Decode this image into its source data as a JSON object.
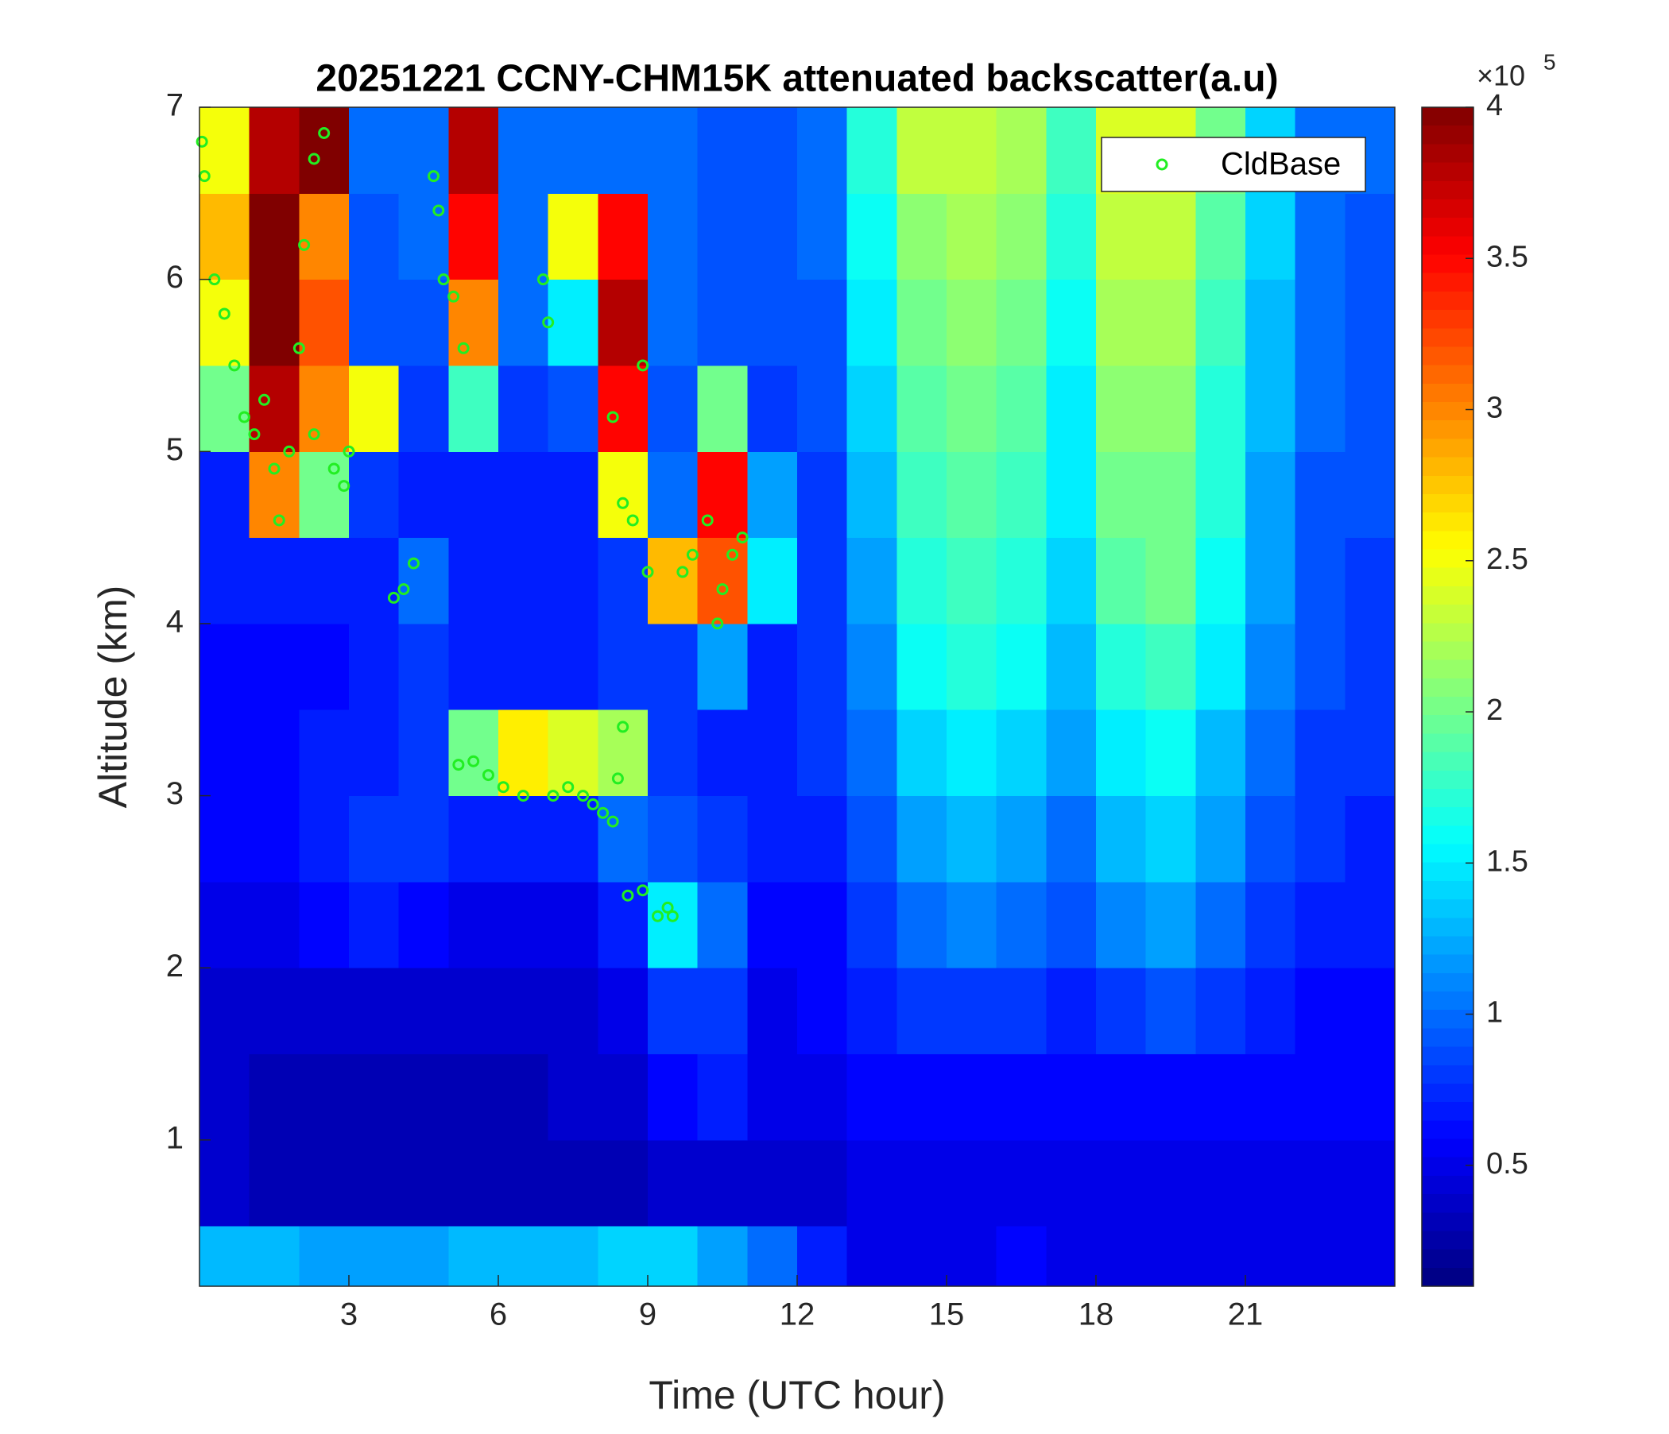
{
  "chart_data": {
    "type": "heatmap",
    "title": "20251221 CCNY-CHM15K attenuated backscatter(a.u)",
    "xlabel": "Time (UTC hour)",
    "ylabel": "Altitude (km)",
    "xlim": [
      0,
      24
    ],
    "xticks": [
      3,
      6,
      9,
      12,
      15,
      18,
      21
    ],
    "ylim": [
      0.15,
      7
    ],
    "yticks": [
      1,
      2,
      3,
      4,
      5,
      6,
      7
    ],
    "colormap": "jet",
    "clim": [
      0.1,
      4
    ],
    "cticks": [
      0.5,
      1,
      1.5,
      2,
      2.5,
      3,
      3.5,
      4
    ],
    "colorbar_multiplier": "×10",
    "colorbar_exponent": "5",
    "xbins": [
      0,
      1,
      2,
      3,
      4,
      5,
      6,
      7,
      8,
      9,
      10,
      11,
      12,
      13,
      14,
      15,
      16,
      17,
      18,
      19,
      20,
      21,
      22,
      23,
      24
    ],
    "ybins": [
      0.15,
      0.5,
      1,
      1.5,
      2,
      2.5,
      3,
      3.5,
      4,
      4.5,
      5,
      5.5,
      6,
      6.5,
      7
    ],
    "z": [
      [
        1.3,
        1.3,
        1.2,
        1.2,
        1.2,
        1.3,
        1.3,
        1.3,
        1.4,
        1.4,
        1.2,
        1.0,
        0.7,
        0.5,
        0.5,
        0.5,
        0.6,
        0.5,
        0.5,
        0.5,
        0.5,
        0.5,
        0.5,
        0.5
      ],
      [
        0.4,
        0.3,
        0.3,
        0.3,
        0.3,
        0.3,
        0.3,
        0.3,
        0.3,
        0.4,
        0.4,
        0.4,
        0.4,
        0.5,
        0.5,
        0.5,
        0.5,
        0.5,
        0.5,
        0.5,
        0.5,
        0.5,
        0.5,
        0.5
      ],
      [
        0.4,
        0.3,
        0.3,
        0.3,
        0.3,
        0.3,
        0.3,
        0.4,
        0.4,
        0.6,
        0.7,
        0.5,
        0.5,
        0.6,
        0.6,
        0.6,
        0.6,
        0.6,
        0.6,
        0.6,
        0.6,
        0.6,
        0.6,
        0.6
      ],
      [
        0.4,
        0.4,
        0.4,
        0.4,
        0.4,
        0.4,
        0.4,
        0.4,
        0.5,
        0.8,
        0.8,
        0.5,
        0.6,
        0.7,
        0.8,
        0.8,
        0.8,
        0.7,
        0.8,
        0.9,
        0.8,
        0.7,
        0.6,
        0.6
      ],
      [
        0.5,
        0.5,
        0.6,
        0.7,
        0.6,
        0.5,
        0.5,
        0.5,
        0.7,
        1.5,
        1.0,
        0.6,
        0.6,
        0.8,
        1.0,
        1.1,
        1.0,
        0.9,
        1.1,
        1.2,
        1.0,
        0.8,
        0.7,
        0.7
      ],
      [
        0.6,
        0.6,
        0.7,
        0.8,
        0.8,
        0.7,
        0.7,
        0.7,
        1.0,
        0.9,
        0.8,
        0.7,
        0.7,
        0.9,
        1.2,
        1.3,
        1.2,
        1.0,
        1.3,
        1.4,
        1.2,
        0.9,
        0.8,
        0.7
      ],
      [
        0.6,
        0.6,
        0.7,
        0.7,
        0.8,
        2.0,
        2.6,
        2.4,
        2.2,
        0.8,
        0.7,
        0.7,
        0.8,
        1.0,
        1.4,
        1.5,
        1.4,
        1.2,
        1.5,
        1.6,
        1.3,
        1.0,
        0.8,
        0.8
      ],
      [
        0.6,
        0.6,
        0.6,
        0.7,
        0.8,
        0.7,
        0.7,
        0.7,
        0.8,
        0.8,
        1.2,
        0.7,
        0.8,
        1.1,
        1.6,
        1.7,
        1.6,
        1.3,
        1.7,
        1.8,
        1.5,
        1.1,
        0.9,
        0.8
      ],
      [
        0.7,
        0.7,
        0.7,
        0.7,
        1.0,
        0.7,
        0.7,
        0.7,
        0.8,
        2.8,
        3.2,
        1.5,
        0.8,
        1.2,
        1.7,
        1.8,
        1.7,
        1.4,
        1.9,
        2.0,
        1.6,
        1.2,
        0.9,
        0.8
      ],
      [
        0.7,
        3.0,
        2.0,
        0.8,
        0.7,
        0.7,
        0.7,
        0.7,
        2.5,
        1.0,
        3.5,
        1.2,
        0.8,
        1.3,
        1.8,
        1.9,
        1.8,
        1.5,
        2.0,
        2.0,
        1.7,
        1.2,
        0.9,
        0.9
      ],
      [
        2.0,
        3.8,
        3.0,
        2.5,
        0.8,
        1.8,
        0.8,
        0.9,
        3.5,
        0.9,
        2.0,
        0.8,
        0.9,
        1.4,
        1.9,
        2.0,
        1.9,
        1.5,
        2.1,
        2.1,
        1.7,
        1.3,
        1.0,
        0.9
      ],
      [
        2.5,
        4.0,
        3.2,
        0.9,
        0.9,
        3.0,
        1.0,
        1.5,
        3.8,
        1.0,
        0.9,
        0.9,
        0.9,
        1.5,
        2.0,
        2.1,
        2.0,
        1.6,
        2.2,
        2.2,
        1.8,
        1.3,
        1.0,
        0.9
      ],
      [
        2.8,
        4.0,
        3.0,
        0.9,
        1.0,
        3.5,
        1.0,
        2.5,
        3.5,
        1.0,
        0.9,
        0.9,
        1.0,
        1.6,
        2.1,
        2.2,
        2.1,
        1.7,
        2.3,
        2.3,
        1.9,
        1.4,
        1.0,
        0.9
      ],
      [
        2.5,
        3.8,
        4.0,
        1.0,
        1.0,
        3.8,
        1.0,
        1.0,
        1.0,
        1.0,
        0.9,
        0.9,
        1.0,
        1.7,
        2.3,
        2.3,
        2.2,
        1.8,
        2.4,
        2.4,
        2.0,
        1.4,
        1.0,
        1.0
      ]
    ],
    "series": [
      {
        "name": "CldBase",
        "color": "#22ee22",
        "x": [
          0.05,
          0.1,
          0.3,
          0.5,
          0.7,
          0.9,
          1.1,
          1.3,
          1.5,
          1.6,
          1.8,
          2.0,
          2.1,
          2.3,
          2.5,
          2.3,
          2.7,
          2.9,
          3.0,
          3.9,
          4.1,
          4.3,
          4.7,
          4.8,
          4.9,
          5.1,
          5.3,
          5.2,
          5.5,
          5.8,
          6.1,
          6.5,
          6.9,
          7.0,
          7.1,
          7.4,
          7.7,
          7.9,
          8.1,
          8.3,
          8.4,
          8.5,
          8.3,
          8.5,
          8.7,
          8.9,
          9.0,
          9.2,
          9.4,
          9.5,
          9.7,
          9.9,
          10.2,
          10.4,
          10.5,
          10.7,
          10.9,
          8.9,
          8.6
        ],
        "y": [
          6.8,
          6.6,
          6.0,
          5.8,
          5.5,
          5.2,
          5.1,
          5.3,
          4.9,
          4.6,
          5.0,
          5.6,
          6.2,
          6.7,
          6.85,
          5.1,
          4.9,
          4.8,
          5.0,
          4.15,
          4.2,
          4.35,
          6.6,
          6.4,
          6.0,
          5.9,
          5.6,
          3.18,
          3.2,
          3.12,
          3.05,
          3.0,
          6.0,
          5.75,
          3.0,
          3.05,
          3.0,
          2.95,
          2.9,
          2.85,
          3.1,
          3.4,
          5.2,
          4.7,
          4.6,
          5.5,
          4.3,
          2.3,
          2.35,
          2.3,
          4.3,
          4.4,
          4.6,
          4.0,
          4.2,
          4.4,
          4.5,
          2.45,
          2.42
        ]
      }
    ],
    "legend": "upper right"
  }
}
